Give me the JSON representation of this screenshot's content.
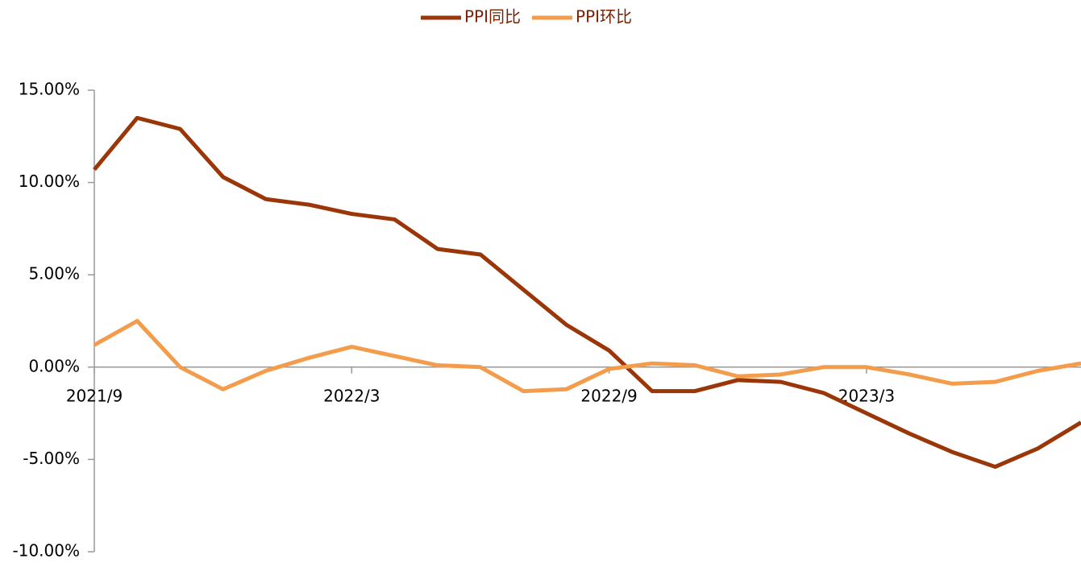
{
  "chart_data": {
    "type": "line",
    "categories": [
      "2021/9",
      null,
      null,
      null,
      null,
      null,
      "2022/3",
      null,
      null,
      null,
      null,
      null,
      "2022/9",
      null,
      null,
      null,
      null,
      null,
      "2023/3",
      null,
      null,
      null,
      null,
      null
    ],
    "series": [
      {
        "name": "PPI同比",
        "color": "#9a3608",
        "values": [
          10.7,
          13.5,
          12.9,
          10.3,
          9.1,
          8.8,
          8.3,
          8.0,
          6.4,
          6.1,
          4.2,
          2.3,
          0.9,
          -1.3,
          -1.3,
          -0.7,
          -0.8,
          -1.4,
          -2.5,
          -3.6,
          -4.6,
          -5.4,
          -4.4,
          -3.0
        ]
      },
      {
        "name": "PPI环比",
        "color": "#f39c4c",
        "values": [
          1.2,
          2.5,
          0.0,
          -1.2,
          -0.2,
          0.5,
          1.1,
          0.6,
          0.1,
          0.0,
          -1.3,
          -1.2,
          -0.1,
          0.2,
          0.1,
          -0.5,
          -0.4,
          0.0,
          0.0,
          -0.4,
          -0.9,
          -0.8,
          -0.2,
          0.2
        ]
      }
    ],
    "ylim": [
      -10,
      15
    ],
    "yticks": [
      {
        "value": -10,
        "label": "-10.00%"
      },
      {
        "value": -5,
        "label": "-5.00%"
      },
      {
        "value": 0,
        "label": "0.00%"
      },
      {
        "value": 5,
        "label": "5.00%"
      },
      {
        "value": 10,
        "label": "10.00%"
      },
      {
        "value": 15,
        "label": "15.00%"
      }
    ],
    "legend": "top"
  }
}
